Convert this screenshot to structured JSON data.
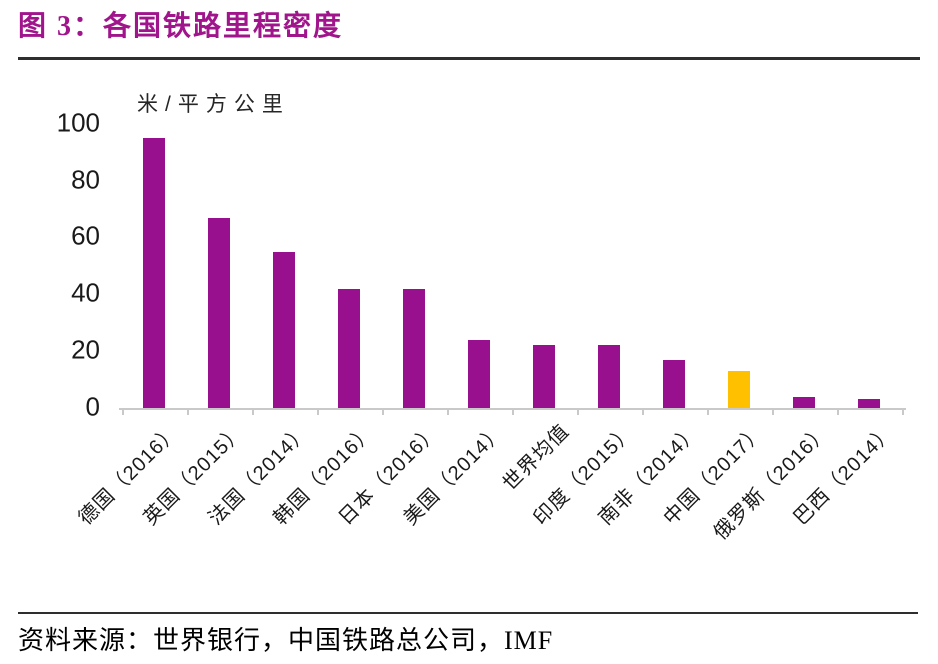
{
  "page": {
    "title": "图 3：各国铁路里程密度",
    "source": "资料来源：世界银行，中国铁路总公司，IMF"
  },
  "chart_data": {
    "type": "bar",
    "title": "图 3：各国铁路里程密度",
    "unit_label": "米/平方公里",
    "categories": [
      "德国（2016）",
      "英国（2015）",
      "法国（2014）",
      "韩国（2016）",
      "日本（2016）",
      "美国（2014）",
      "世界均值",
      "印度（2015）",
      "南非（2014）",
      "中国（2017）",
      "俄罗斯（2016）",
      "巴西（2014）"
    ],
    "values": [
      95,
      67,
      55,
      42,
      42,
      24,
      22,
      22,
      17,
      13,
      4,
      3
    ],
    "highlight_index": 9,
    "bar_color": "#99108E",
    "highlight_color": "#FFC000",
    "ylim": [
      0,
      100
    ],
    "yticks": [
      0,
      20,
      40,
      60,
      80,
      100
    ],
    "grid": false,
    "legend_position": "none",
    "x_label_rotation_deg": 45
  },
  "colors": {
    "title": "#A0148C",
    "axis": "#C9C9C9",
    "text": "#1A1A1A",
    "rule": "#2E2E2E"
  }
}
